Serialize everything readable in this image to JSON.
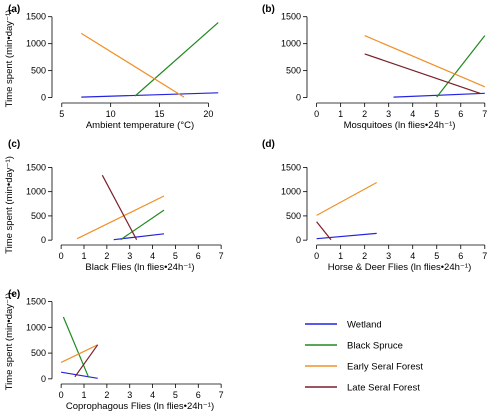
{
  "series_colors": {
    "Wetland": "#2424e0",
    "Black Spruce": "#1f8a1f",
    "Early Seral Forest": "#f0902a",
    "Late Seral Forest": "#7a1f2a"
  },
  "legend": {
    "entries": [
      "Wetland",
      "Black Spruce",
      "Early Seral Forest",
      "Late Seral Forest"
    ]
  },
  "chart_data": [
    {
      "panel": "(a)",
      "type": "line",
      "xlabel": "Ambient temperature (°C)",
      "ylabel": "Time spent (min•day⁻¹)",
      "xlim": [
        4,
        22
      ],
      "ylim": [
        -100,
        1550
      ],
      "xticks": [
        5,
        10,
        15,
        20
      ],
      "yticks": [
        0,
        500,
        1000,
        1500
      ],
      "series": [
        {
          "name": "Wetland",
          "x": [
            7,
            21
          ],
          "y": [
            10,
            90
          ]
        },
        {
          "name": "Black Spruce",
          "x": [
            12.5,
            21
          ],
          "y": [
            30,
            1390
          ]
        },
        {
          "name": "Early Seral Forest",
          "x": [
            7,
            17.5
          ],
          "y": [
            1190,
            10
          ]
        }
      ]
    },
    {
      "panel": "(b)",
      "type": "line",
      "xlabel": "Mosquitoes (ln flies•24h⁻¹)",
      "ylabel": "",
      "xlim": [
        -0.4,
        7.3
      ],
      "ylim": [
        -100,
        1550
      ],
      "xticks": [
        0,
        1,
        2,
        3,
        4,
        5,
        6,
        7
      ],
      "yticks": [
        0,
        500,
        1000,
        1500
      ],
      "series": [
        {
          "name": "Wetland",
          "x": [
            3.2,
            7
          ],
          "y": [
            10,
            80
          ]
        },
        {
          "name": "Black Spruce",
          "x": [
            5,
            7
          ],
          "y": [
            10,
            1150
          ]
        },
        {
          "name": "Early Seral Forest",
          "x": [
            2,
            7
          ],
          "y": [
            1150,
            200
          ]
        },
        {
          "name": "Late Seral Forest",
          "x": [
            2,
            6.8
          ],
          "y": [
            810,
            80
          ]
        }
      ]
    },
    {
      "panel": "(c)",
      "type": "line",
      "xlabel": "Black Flies (ln flies•24h⁻¹)",
      "ylabel": "Time spent (min•day⁻¹)",
      "xlim": [
        -0.4,
        7.3
      ],
      "ylim": [
        -100,
        1550
      ],
      "xticks": [
        0,
        1,
        2,
        3,
        4,
        5,
        6,
        7
      ],
      "yticks": [
        0,
        500,
        1000,
        1500
      ],
      "series": [
        {
          "name": "Wetland",
          "x": [
            2.3,
            4.5
          ],
          "y": [
            10,
            130
          ]
        },
        {
          "name": "Black Spruce",
          "x": [
            2.6,
            4.5
          ],
          "y": [
            10,
            620
          ]
        },
        {
          "name": "Early Seral Forest",
          "x": [
            0.7,
            4.5
          ],
          "y": [
            30,
            910
          ]
        },
        {
          "name": "Late Seral Forest",
          "x": [
            1.8,
            3.3
          ],
          "y": [
            1340,
            10
          ]
        }
      ]
    },
    {
      "panel": "(d)",
      "type": "line",
      "xlabel": "Horse & Deer Flies (ln flies•24h⁻¹)",
      "ylabel": "",
      "xlim": [
        -0.4,
        7.3
      ],
      "ylim": [
        -100,
        1550
      ],
      "xticks": [
        0,
        1,
        2,
        3,
        4,
        5,
        6,
        7
      ],
      "yticks": [
        0,
        500,
        1000,
        1500
      ],
      "series": [
        {
          "name": "Wetland",
          "x": [
            0,
            2.5
          ],
          "y": [
            30,
            140
          ]
        },
        {
          "name": "Early Seral Forest",
          "x": [
            0,
            2.5
          ],
          "y": [
            510,
            1190
          ]
        },
        {
          "name": "Late Seral Forest",
          "x": [
            0,
            0.6
          ],
          "y": [
            380,
            10
          ]
        }
      ]
    },
    {
      "panel": "(e)",
      "type": "line",
      "xlabel": "Coprophagous Flies (ln flies•24h⁻¹)",
      "ylabel": "Time spent (min•day⁻¹)",
      "xlim": [
        -0.4,
        7.3
      ],
      "ylim": [
        -100,
        1550
      ],
      "xticks": [
        0,
        1,
        2,
        3,
        4,
        5,
        6,
        7
      ],
      "yticks": [
        0,
        500,
        1000,
        1500
      ],
      "series": [
        {
          "name": "Wetland",
          "x": [
            0,
            1.6
          ],
          "y": [
            130,
            10
          ]
        },
        {
          "name": "Black Spruce",
          "x": [
            0.1,
            1.2
          ],
          "y": [
            1200,
            30
          ]
        },
        {
          "name": "Early Seral Forest",
          "x": [
            0,
            1.6
          ],
          "y": [
            320,
            660
          ]
        },
        {
          "name": "Late Seral Forest",
          "x": [
            0.6,
            1.6
          ],
          "y": [
            40,
            660
          ]
        }
      ]
    }
  ]
}
